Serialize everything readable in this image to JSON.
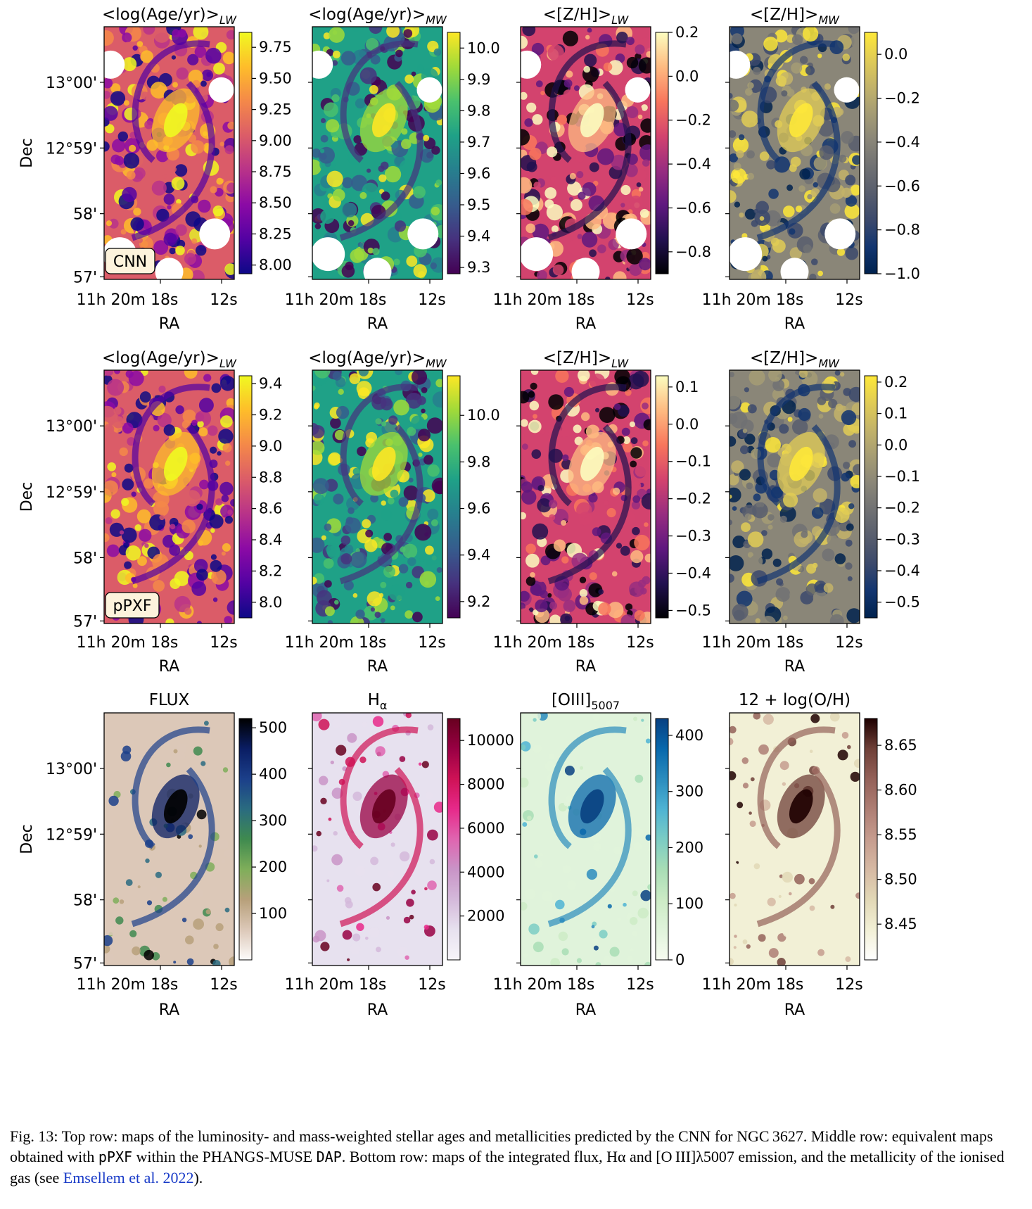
{
  "figure": {
    "rows": [
      {
        "id": "cnn",
        "badge": "CNN",
        "panels": [
          {
            "title": "<log(Age/yr)>",
            "subscript": "LW",
            "colormap": "plasma",
            "ticks": [
              "9.75",
              "9.50",
              "9.25",
              "9.00",
              "8.75",
              "8.50",
              "8.25",
              "8.00"
            ],
            "vmin": 7.93,
            "vmax": 9.87
          },
          {
            "title": "<log(Age/yr)>",
            "subscript": "MW",
            "colormap": "viridis",
            "ticks": [
              "10.0",
              "9.9",
              "9.8",
              "9.7",
              "9.6",
              "9.5",
              "9.4",
              "9.3"
            ],
            "vmin": 9.28,
            "vmax": 10.05
          },
          {
            "title": "<[Z/H]>",
            "subscript": "LW",
            "colormap": "magma",
            "ticks": [
              "0.2",
              "0.0",
              "−0.2",
              "−0.4",
              "−0.6",
              "−0.8"
            ],
            "vmin": -0.9,
            "vmax": 0.2
          },
          {
            "title": "<[Z/H]>",
            "subscript": "MW",
            "colormap": "cividis",
            "ticks": [
              "0.0",
              "−0.2",
              "−0.4",
              "−0.6",
              "−0.8",
              "−1.0"
            ],
            "vmin": -1.0,
            "vmax": 0.1
          }
        ]
      },
      {
        "id": "ppxf",
        "badge": "pPXF",
        "panels": [
          {
            "title": "<log(Age/yr)>",
            "subscript": "LW",
            "colormap": "plasma",
            "ticks": [
              "9.4",
              "9.2",
              "9.0",
              "8.8",
              "8.6",
              "8.4",
              "8.2",
              "8.0"
            ],
            "vmin": 7.9,
            "vmax": 9.45
          },
          {
            "title": "<log(Age/yr)>",
            "subscript": "MW",
            "colormap": "viridis",
            "ticks": [
              "10.0",
              "9.8",
              "9.6",
              "9.4",
              "9.2"
            ],
            "vmin": 9.13,
            "vmax": 10.17
          },
          {
            "title": "<[Z/H]>",
            "subscript": "LW",
            "colormap": "magma",
            "ticks": [
              "0.1",
              "0.0",
              "−0.1",
              "−0.2",
              "−0.3",
              "−0.4",
              "−0.5"
            ],
            "vmin": -0.52,
            "vmax": 0.13
          },
          {
            "title": "<[Z/H]>",
            "subscript": "MW",
            "colormap": "cividis",
            "ticks": [
              "0.2",
              "0.1",
              "0.0",
              "−0.1",
              "−0.2",
              "−0.3",
              "−0.4",
              "−0.5"
            ],
            "vmin": -0.55,
            "vmax": 0.22
          }
        ]
      },
      {
        "id": "gas",
        "badge": "",
        "panels": [
          {
            "title": "FLUX",
            "subscript": "",
            "colormap": "gist_earth_r",
            "ticks": [
              "500",
              "400",
              "300",
              "200",
              "100"
            ],
            "vmin": 0,
            "vmax": 520
          },
          {
            "title": "H",
            "subscript": "α",
            "colormap": "PuRd",
            "ticks": [
              "10000",
              "8000",
              "6000",
              "4000",
              "2000"
            ],
            "vmin": 0,
            "vmax": 11000
          },
          {
            "title": "[OIII]",
            "subscript": "5007",
            "colormap": "GnBu",
            "ticks": [
              "400",
              "300",
              "200",
              "100",
              "0"
            ],
            "vmin": 0,
            "vmax": 430
          },
          {
            "title": "12 + log(O/H)",
            "subscript": "",
            "colormap": "pink_r",
            "ticks": [
              "8.65",
              "8.60",
              "8.55",
              "8.50",
              "8.45"
            ],
            "vmin": 8.41,
            "vmax": 8.68
          }
        ]
      }
    ],
    "ra_ticks": [
      "11h 20m 18s",
      "12s"
    ],
    "dec_ticks": [
      "13°00'",
      "12°59'",
      "58'",
      "57'"
    ],
    "xlabel": "RA",
    "ylabel": "Dec"
  },
  "caption": {
    "label": "Fig. 13:",
    "part1": " Top row: maps of the luminosity- and mass-weighted stellar ages and metallicities predicted by the CNN for NGC 3627. Middle row: equivalent maps obtained with ",
    "code1": "pPXF",
    "part2": " within the PHANGS-MUSE ",
    "code2": "DAP",
    "part3": ". Bottom row: maps of the integrated flux, Hα and [O III]λ5007 emission, and the metallicity of the ionised gas (see ",
    "ref": "Emsellem et al. 2022",
    "part4": ")."
  }
}
